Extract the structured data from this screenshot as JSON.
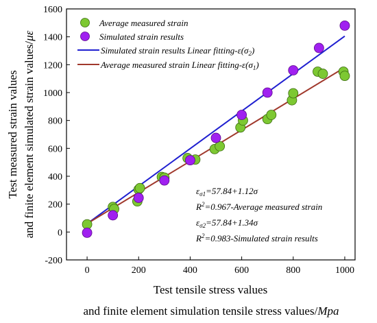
{
  "chart_data": {
    "type": "scatter",
    "xlabel_line1": "Test tensile stress values",
    "xlabel_line2_prefix": "and finite element simulation tensile stress values/",
    "xlabel_line2_unit": "Mpa",
    "ylabel_line1": "Test measured strain values",
    "ylabel_line2_prefix": "and finite element simulated strain values/",
    "ylabel_line2_unit": "με",
    "xlim": [
      -80,
      1040
    ],
    "ylim": [
      -200,
      1600
    ],
    "xticks": [
      0,
      200,
      400,
      600,
      800,
      1000
    ],
    "yticks": [
      -200,
      0,
      200,
      400,
      600,
      800,
      1000,
      1200,
      1400,
      1600
    ],
    "series": [
      {
        "name": "Average measured strain",
        "color": "#7dc832",
        "points": [
          [
            0,
            55
          ],
          [
            100,
            180
          ],
          [
            105,
            165
          ],
          [
            195,
            220
          ],
          [
            200,
            305
          ],
          [
            205,
            315
          ],
          [
            290,
            395
          ],
          [
            300,
            390
          ],
          [
            390,
            530
          ],
          [
            420,
            520
          ],
          [
            495,
            595
          ],
          [
            515,
            615
          ],
          [
            595,
            750
          ],
          [
            605,
            800
          ],
          [
            700,
            810
          ],
          [
            715,
            840
          ],
          [
            795,
            945
          ],
          [
            800,
            995
          ],
          [
            895,
            1150
          ],
          [
            915,
            1135
          ],
          [
            995,
            1150
          ],
          [
            1000,
            1120
          ]
        ]
      },
      {
        "name": "Simulated strain results",
        "color": "#a020f0",
        "points": [
          [
            0,
            -5
          ],
          [
            100,
            120
          ],
          [
            200,
            245
          ],
          [
            300,
            370
          ],
          [
            400,
            515
          ],
          [
            500,
            675
          ],
          [
            600,
            840
          ],
          [
            700,
            1000
          ],
          [
            800,
            1160
          ],
          [
            900,
            1320
          ],
          [
            1000,
            1480
          ]
        ]
      }
    ],
    "fit_lines": [
      {
        "name": "Simulated strain results Linear fitting-ε(σ",
        "sub": "2",
        "name_end": ")",
        "color": "#1f1fd0",
        "from": [
          0,
          60
        ],
        "to": [
          1000,
          1405
        ]
      },
      {
        "name": "Average measured strain Linear fitting-ε(σ",
        "sub": "1",
        "name_end": ")",
        "color": "#a0382c",
        "from": [
          0,
          60
        ],
        "to": [
          1000,
          1180
        ]
      }
    ],
    "annotations": [
      {
        "pre": "ε",
        "sub": "σ1",
        "post": "=57.84+1.12σ"
      },
      {
        "pre": "R",
        "sup": "2",
        "post": "=0.967-Average measured strain"
      },
      {
        "pre": "ε",
        "sub": "σ2",
        "post": "=57.84+1.34σ"
      },
      {
        "pre": "R",
        "sup": "2",
        "post": "=0.983-Simulated strain results"
      }
    ]
  }
}
